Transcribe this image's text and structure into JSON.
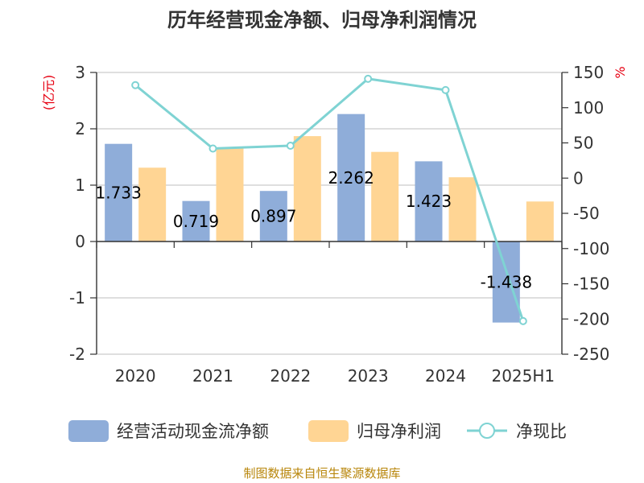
{
  "chart_data": {
    "type": "bar",
    "title": "历年经营现金净额、归母净利润情况",
    "categories": [
      "2020",
      "2021",
      "2022",
      "2023",
      "2024",
      "2025H1"
    ],
    "series": [
      {
        "name": "经营活动现金流净额",
        "type": "bar",
        "axis": "left",
        "color": "#8fadd9",
        "values": [
          1.733,
          0.719,
          0.897,
          2.262,
          1.423,
          -1.438
        ],
        "labels": [
          "1.733",
          "0.719",
          "0.897",
          "2.262",
          "1.423",
          "-1.438"
        ]
      },
      {
        "name": "归母净利润",
        "type": "bar",
        "axis": "left",
        "color": "#ffd594",
        "values": [
          1.31,
          1.67,
          1.87,
          1.59,
          1.14,
          0.71
        ]
      },
      {
        "name": "净现比",
        "type": "line",
        "axis": "right",
        "color": "#7fd3d3",
        "values": [
          132,
          42,
          46,
          141,
          125,
          -203
        ]
      }
    ],
    "y_left": {
      "unit": "(亿元)",
      "min": -2,
      "max": 3,
      "ticks": [
        "3",
        "2",
        "1",
        "0",
        "-1",
        "-2"
      ]
    },
    "y_right": {
      "unit": "%",
      "min": -250,
      "max": 150,
      "ticks": [
        "150",
        "100",
        "50",
        "0",
        "-50",
        "-100",
        "-150",
        "-200",
        "-250"
      ]
    },
    "grid": true,
    "legend_position": "bottom",
    "source": "制图数据来自恒生聚源数据库"
  }
}
